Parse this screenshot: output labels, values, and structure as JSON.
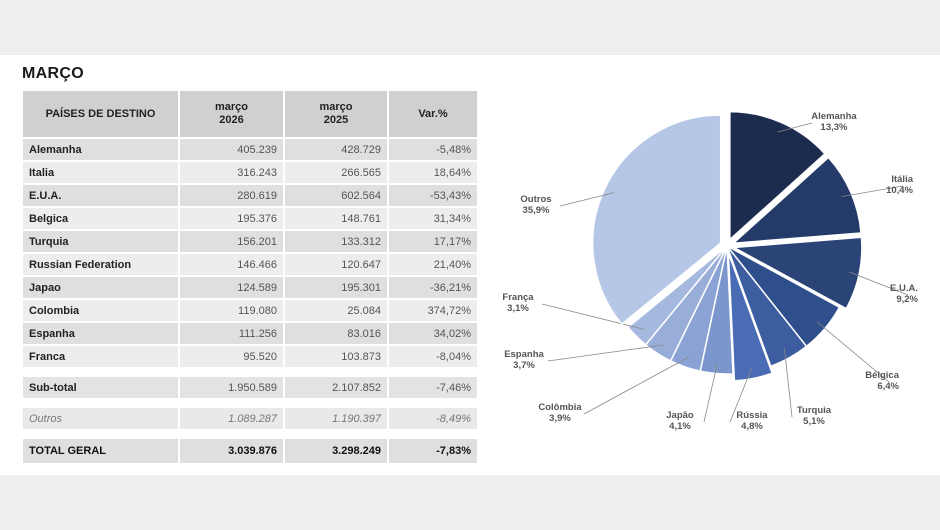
{
  "title": "MARÇO",
  "table": {
    "headers": [
      "PAÍSES DE DESTINO",
      "março 2026",
      "março 2025",
      "Var.%"
    ],
    "header_lines": [
      [
        "PAÍSES DE DESTINO"
      ],
      [
        "março",
        "2026"
      ],
      [
        "março",
        "2025"
      ],
      [
        "Var.%"
      ]
    ],
    "rows": [
      [
        "Alemanha",
        "405.239",
        "428.729",
        "-5,48%"
      ],
      [
        "Italia",
        "316.243",
        "266.565",
        "18,64%"
      ],
      [
        "E.U.A.",
        "280.619",
        "602.564",
        "-53,43%"
      ],
      [
        "Belgica",
        "195.376",
        "148.761",
        "31,34%"
      ],
      [
        "Turquia",
        "156.201",
        "133.312",
        "17,17%"
      ],
      [
        "Russian Federation",
        "146.466",
        "120.647",
        "21,40%"
      ],
      [
        "Japao",
        "124.589",
        "195.301",
        "-36,21%"
      ],
      [
        "Colombia",
        "119.080",
        "25.084",
        "374,72%"
      ],
      [
        "Espanha",
        "111.256",
        "83.016",
        "34,02%"
      ],
      [
        "Franca",
        "95.520",
        "103.873",
        "-8,04%"
      ]
    ],
    "subtotal": [
      "Sub-total",
      "1.950.589",
      "2.107.852",
      "-7,46%"
    ],
    "outros": [
      "Outros",
      "1.089.287",
      "1.190.397",
      "-8,49%"
    ],
    "total": [
      "TOTAL GERAL",
      "3.039.876",
      "3.298.249",
      "-7,83%"
    ]
  },
  "chart_data": {
    "type": "pie",
    "title": "",
    "slices": [
      {
        "label": "Alemanha",
        "pct": "13,3%",
        "value": 13.3,
        "color": "#1c2c4f",
        "exploded": true
      },
      {
        "label": "Itália",
        "pct": "10,4%",
        "value": 10.4,
        "color": "#243a69",
        "exploded": true
      },
      {
        "label": "E.U.A.",
        "pct": "9,2%",
        "value": 9.2,
        "color": "#2b4478",
        "exploded": true
      },
      {
        "label": "Bélgica",
        "pct": "6,4%",
        "value": 6.4,
        "color": "#2f4f8c",
        "exploded": false
      },
      {
        "label": "Turquia",
        "pct": "5,1%",
        "value": 5.1,
        "color": "#3c5da0",
        "exploded": false
      },
      {
        "label": "Rússia",
        "pct": "4,8%",
        "value": 4.8,
        "color": "#4a6cb4",
        "exploded": true
      },
      {
        "label": "Japão",
        "pct": "4,1%",
        "value": 4.1,
        "color": "#7b96cc",
        "exploded": false
      },
      {
        "label": "Colômbia",
        "pct": "3,9%",
        "value": 3.9,
        "color": "#8aa3d4",
        "exploded": false
      },
      {
        "label": "Espanha",
        "pct": "3,7%",
        "value": 3.7,
        "color": "#98aed9",
        "exploded": false
      },
      {
        "label": "França",
        "pct": "3,1%",
        "value": 3.1,
        "color": "#a5b9df",
        "exploded": false
      },
      {
        "label": "Outros",
        "pct": "35,9%",
        "value": 35.9,
        "color": "#b5c6e6",
        "exploded": true
      }
    ]
  }
}
